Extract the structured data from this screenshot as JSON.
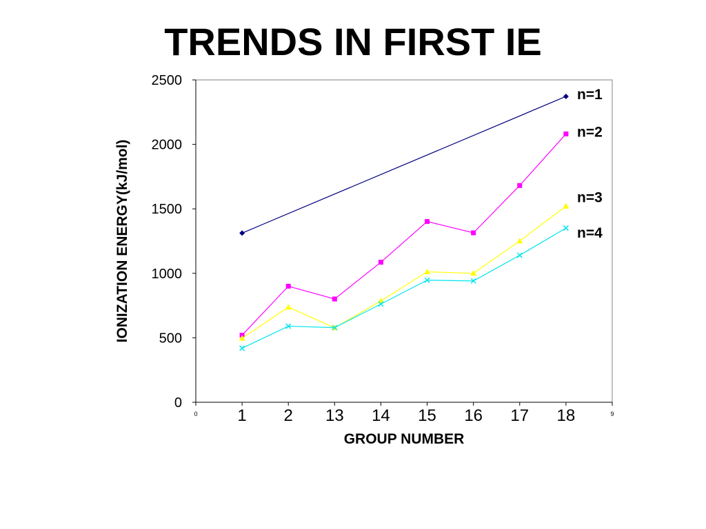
{
  "slide": {
    "title": "TRENDS IN FIRST IE"
  },
  "chart_data": {
    "type": "line",
    "title": "",
    "xlabel": "GROUP NUMBER",
    "ylabel": "IONIZATION ENERGY(kJ/mol)",
    "xlim": [
      0,
      9
    ],
    "ylim": [
      0,
      2500
    ],
    "yticks": [
      0,
      500,
      1000,
      1500,
      2000,
      2500
    ],
    "x_numeric_ticks": [
      0,
      9
    ],
    "x": [
      1,
      2,
      3,
      4,
      5,
      6,
      7,
      8
    ],
    "group_labels": [
      "1",
      "2",
      "13",
      "14",
      "15",
      "16",
      "17",
      "18"
    ],
    "grid": false,
    "legend_position": "right",
    "series": [
      {
        "name": "n=1",
        "color": "#000080",
        "marker": "diamond",
        "x": [
          1,
          8
        ],
        "values": [
          1312,
          2372
        ]
      },
      {
        "name": "n=2",
        "color": "#ff00ff",
        "marker": "square",
        "x": [
          1,
          2,
          3,
          4,
          5,
          6,
          7,
          8
        ],
        "values": [
          520,
          900,
          801,
          1086,
          1402,
          1314,
          1681,
          2081
        ]
      },
      {
        "name": "n=3",
        "color": "#ffff00",
        "marker": "triangle",
        "x": [
          1,
          2,
          3,
          4,
          5,
          6,
          7,
          8
        ],
        "values": [
          496,
          738,
          578,
          786,
          1012,
          1000,
          1251,
          1521
        ]
      },
      {
        "name": "n=4",
        "color": "#00e5ee",
        "marker": "x",
        "x": [
          1,
          2,
          3,
          4,
          5,
          6,
          7,
          8
        ],
        "values": [
          419,
          590,
          579,
          762,
          947,
          941,
          1140,
          1351
        ]
      }
    ]
  }
}
